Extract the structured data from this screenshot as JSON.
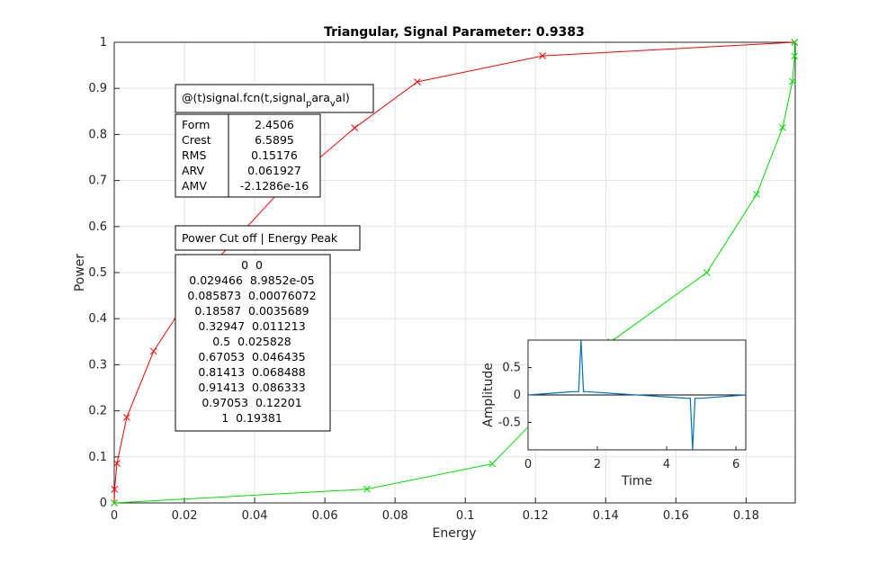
{
  "chart_data": {
    "type": "line",
    "title": "Triangular, Signal Parameter: 0.9383",
    "xlabel": "Energy",
    "ylabel": "Power",
    "xlim": [
      0,
      0.194
    ],
    "ylim": [
      0,
      1
    ],
    "xticks": [
      "0",
      "0.02",
      "0.04",
      "0.06",
      "0.08",
      "0.1",
      "0.12",
      "0.14",
      "0.16",
      "0.18"
    ],
    "yticks": [
      "0",
      "0.1",
      "0.2",
      "0.3",
      "0.4",
      "0.5",
      "0.6",
      "0.7",
      "0.8",
      "0.9",
      "1"
    ],
    "grid": true,
    "series": [
      {
        "color": "#ff0000",
        "marker": "x",
        "x": [
          0,
          8.98e-05,
          0.00076072,
          0.0035689,
          0.011213,
          0.025828,
          0.046435,
          0.068488,
          0.086333,
          0.12201,
          0.19381
        ],
        "y": [
          0,
          0.029466,
          0.085873,
          0.18587,
          0.32947,
          0.5,
          0.67053,
          0.81413,
          0.91413,
          0.97053,
          1
        ]
      },
      {
        "color": "#00e000",
        "marker": "x",
        "x": [
          0,
          0.072,
          0.1077,
          0.1415,
          0.1688,
          0.183,
          0.1904,
          0.1932,
          0.1938,
          0.19381
        ],
        "y": [
          0,
          0.03,
          0.085,
          0.35,
          0.5,
          0.67,
          0.815,
          0.915,
          0.97,
          1
        ]
      }
    ],
    "stats_box": {
      "header": "@(t)signal.fcn(t,signal_para_val)",
      "rows": [
        {
          "label": "Form",
          "value": "2.4506"
        },
        {
          "label": "Crest",
          "value": "6.5895"
        },
        {
          "label": "RMS",
          "value": "0.15176"
        },
        {
          "label": "ARV",
          "value": "0.061927"
        },
        {
          "label": "AMV",
          "value": "-2.1286e-16"
        }
      ]
    },
    "cutoff_box": {
      "header": "Power Cut off | Energy Peak",
      "rows": [
        [
          "0",
          "0"
        ],
        [
          "0.029466",
          "8.9852e-05"
        ],
        [
          "0.085873",
          "0.00076072"
        ],
        [
          "0.18587",
          "0.0035689"
        ],
        [
          "0.32947",
          "0.011213"
        ],
        [
          "0.5",
          "0.025828"
        ],
        [
          "0.67053",
          "0.046435"
        ],
        [
          "0.81413",
          "0.068488"
        ],
        [
          "0.91413",
          "0.086333"
        ],
        [
          "0.97053",
          "0.12201"
        ],
        [
          "1",
          "0.19381"
        ]
      ]
    },
    "inset": {
      "type": "line",
      "xlabel": "Time",
      "ylabel": "Amplitude",
      "xlim": [
        0,
        6.2832
      ],
      "ylim": [
        -1,
        1
      ],
      "xticks": [
        "0",
        "2",
        "4",
        "6"
      ],
      "yticks": [
        "-0.5",
        "0",
        "0.5"
      ],
      "color": "#0072bd",
      "x": [
        0,
        1.3,
        1.46,
        1.53,
        1.6,
        1.68,
        3.14,
        4.6,
        4.68,
        4.75,
        4.82,
        4.98,
        6.2832
      ],
      "y": [
        0,
        0.06,
        0.06,
        1.0,
        0.06,
        0.06,
        0,
        -0.06,
        -0.06,
        -1.0,
        -0.06,
        -0.06,
        0
      ]
    }
  }
}
